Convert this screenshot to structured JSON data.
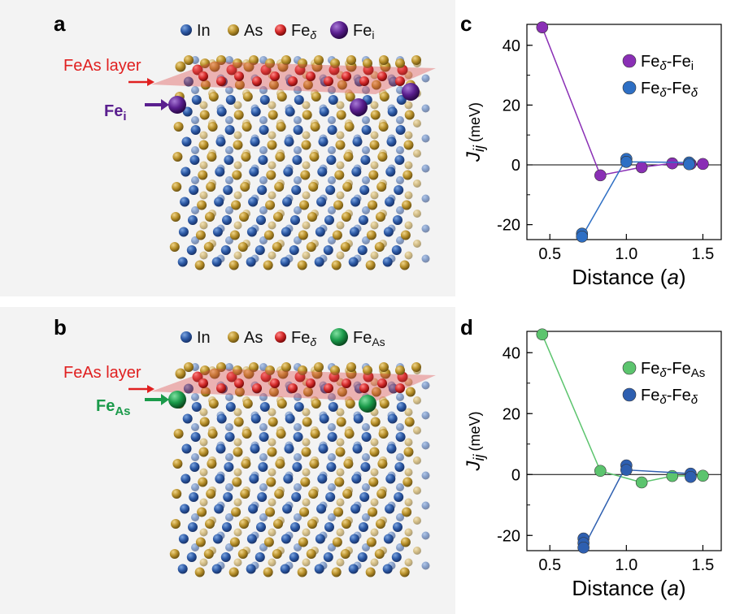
{
  "panels": {
    "a": {
      "letter": "a",
      "legend": [
        {
          "label": "In",
          "color": "#2d5aa6"
        },
        {
          "label": "As",
          "color": "#b8902a"
        },
        {
          "label": "Fe",
          "sub": "δ",
          "color": "#d42a2a"
        },
        {
          "label": "Fe",
          "sub": "i",
          "color": "#5a1f8f"
        }
      ],
      "layer_label": "FeAs layer",
      "defect_label": "Fe",
      "defect_sub": "i",
      "defect_color": "#5a1f8f"
    },
    "b": {
      "letter": "b",
      "legend": [
        {
          "label": "In",
          "color": "#2d5aa6"
        },
        {
          "label": "As",
          "color": "#b8902a"
        },
        {
          "label": "Fe",
          "sub": "δ",
          "color": "#d42a2a"
        },
        {
          "label": "Fe",
          "sub": "As",
          "color": "#1a9a4a"
        }
      ],
      "layer_label": "FeAs layer",
      "defect_label": "Fe",
      "defect_sub": "As",
      "defect_color": "#1a9a4a"
    }
  },
  "chart_data": [
    {
      "id": "c",
      "letter": "c",
      "type": "scatter",
      "ylabel_main": "J",
      "ylabel_sub": "ij",
      "ylabel_unit": "(meV)",
      "xlabel": "Distance",
      "xlabel_unit": "a",
      "xlim": [
        0.35,
        1.62
      ],
      "ylim": [
        -25,
        47
      ],
      "xticks": [
        "0.5",
        "1.0",
        "1.5"
      ],
      "yticks": [
        "40",
        "20",
        "0",
        "-20"
      ],
      "series": [
        {
          "name": "Fe",
          "name_sub": "δ",
          "name_rest": "-Fe",
          "name_sub2": "i",
          "color": "#8a2fb5",
          "x": [
            0.45,
            0.83,
            1.1,
            1.3,
            1.42,
            1.5
          ],
          "y": [
            46,
            -3.5,
            -0.8,
            0.5,
            0.3,
            0.3
          ]
        },
        {
          "name": "Fe",
          "name_sub": "δ",
          "name_rest": "-Fe",
          "name_sub2": "δ",
          "color": "#2e6fc4",
          "x": [
            0.71,
            0.71,
            1.0,
            1.0,
            1.41,
            1.41
          ],
          "y": [
            -23,
            -24,
            2.0,
            1.0,
            0.8,
            0.2
          ]
        }
      ]
    },
    {
      "id": "d",
      "letter": "d",
      "type": "scatter",
      "ylabel_main": "J",
      "ylabel_sub": "ij",
      "ylabel_unit": "(meV)",
      "xlabel": "Distance",
      "xlabel_unit": "a",
      "xlim": [
        0.35,
        1.62
      ],
      "ylim": [
        -25,
        47
      ],
      "xticks": [
        "0.5",
        "1.0",
        "1.5"
      ],
      "yticks": [
        "40",
        "20",
        "0",
        "-20"
      ],
      "series": [
        {
          "name": "Fe",
          "name_sub": "δ",
          "name_rest": "-Fe",
          "name_sub2": "As",
          "color": "#5cc46e",
          "x": [
            0.45,
            0.83,
            1.1,
            1.3,
            1.5
          ],
          "y": [
            46,
            1.2,
            -2.6,
            -0.5,
            -0.4
          ]
        },
        {
          "name": "Fe",
          "name_sub": "δ",
          "name_rest": "-Fe",
          "name_sub2": "δ",
          "color": "#2e5fb0",
          "x": [
            0.72,
            0.72,
            0.72,
            1.0,
            1.0,
            1.42,
            1.42
          ],
          "y": [
            -21,
            -22.5,
            -24,
            3.0,
            1.5,
            0.3,
            -0.8
          ]
        }
      ]
    }
  ]
}
